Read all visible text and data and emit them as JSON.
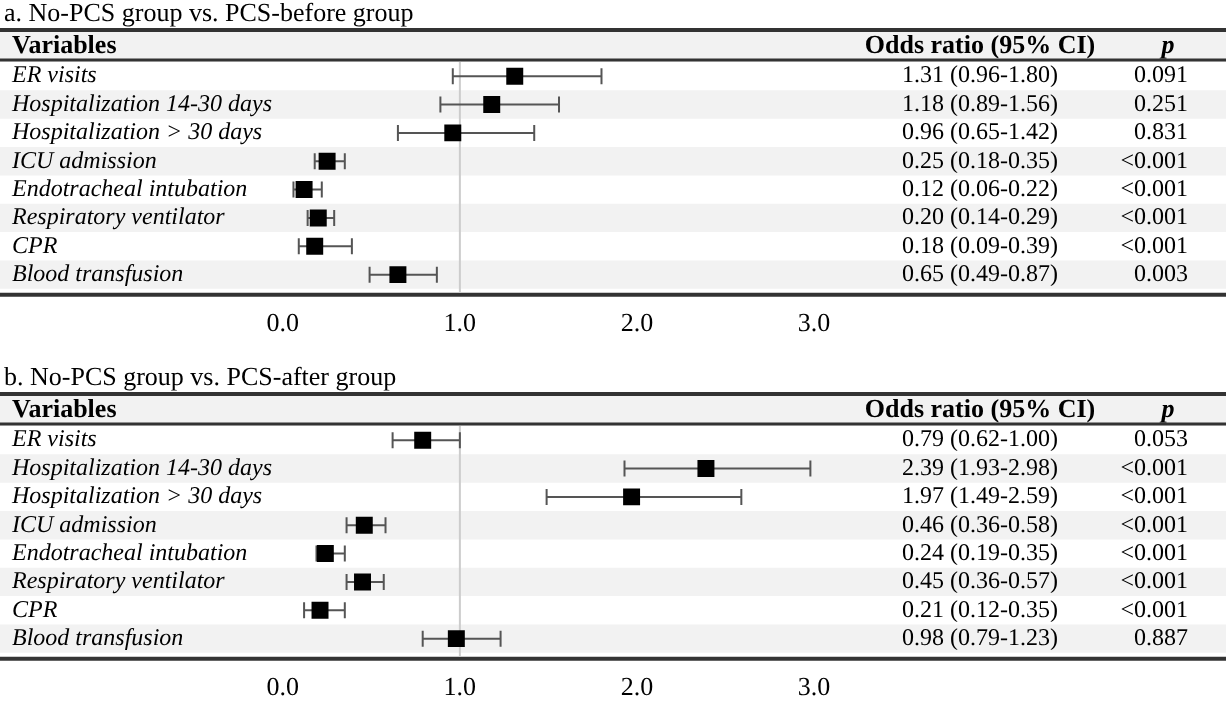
{
  "chart_data": [
    {
      "type": "scatter",
      "title": "a. No-PCS group vs. PCS-before group",
      "ylabel": "Variables",
      "orientation": "horizontal",
      "categories": [
        "ER visits",
        "Hospitalization 14-30 days",
        "Hospitalization > 30 days",
        "ICU admission",
        "Endotracheal intubation",
        "Respiratory ventilator",
        "CPR",
        "Blood transfusion"
      ],
      "values": [
        1.31,
        1.18,
        0.96,
        0.25,
        0.12,
        0.2,
        0.18,
        0.65
      ],
      "errors": [
        [
          0.96,
          1.8
        ],
        [
          0.89,
          1.56
        ],
        [
          0.65,
          1.42
        ],
        [
          0.18,
          0.35
        ],
        [
          0.06,
          0.22
        ],
        [
          0.14,
          0.29
        ],
        [
          0.09,
          0.39
        ],
        [
          0.49,
          0.87
        ]
      ],
      "color": "#000000",
      "marker": "square",
      "xlim": [
        -1.53,
        5.26
      ],
      "xticks": [
        {
          "value": 0,
          "label": "0.0"
        },
        {
          "value": 1,
          "label": "1.0"
        },
        {
          "value": 2,
          "label": "2.0"
        },
        {
          "value": 3,
          "label": "3.0"
        }
      ],
      "ref_lines": [
        {
          "axis": "x",
          "value": 1,
          "color": "#cccccc"
        }
      ],
      "grid": false,
      "legend": false,
      "annotations": [
        "Odds ratio (95% CI)",
        "p",
        "1.31 (0.96-1.80)",
        "0.091",
        "1.18 (0.89-1.56)",
        "0.251",
        "0.96 (0.65-1.42)",
        "0.831",
        "0.25 (0.18-0.35)",
        "<0.001",
        "0.12 (0.06-0.22)",
        "<0.001",
        "0.20 (0.14-0.29)",
        "<0.001",
        "0.18 (0.09-0.39)",
        "<0.001",
        "0.65 (0.49-0.87)",
        "0.003"
      ]
    },
    {
      "type": "scatter",
      "title": "b. No-PCS group vs. PCS-after group",
      "ylabel": "Variables",
      "orientation": "horizontal",
      "categories": [
        "ER visits",
        "Hospitalization 14-30 days",
        "Hospitalization > 30 days",
        "ICU admission",
        "Endotracheal intubation",
        "Respiratory ventilator",
        "CPR",
        "Blood transfusion"
      ],
      "values": [
        0.79,
        2.39,
        1.97,
        0.46,
        0.24,
        0.45,
        0.21,
        0.98
      ],
      "errors": [
        [
          0.62,
          1.0
        ],
        [
          1.93,
          2.98
        ],
        [
          1.49,
          2.59
        ],
        [
          0.36,
          0.58
        ],
        [
          0.19,
          0.35
        ],
        [
          0.36,
          0.57
        ],
        [
          0.12,
          0.35
        ],
        [
          0.79,
          1.23
        ]
      ],
      "color": "#000000",
      "marker": "square",
      "xlim": [
        -1.53,
        5.26
      ],
      "xticks": [
        {
          "value": 0,
          "label": "0.0"
        },
        {
          "value": 1,
          "label": "1.0"
        },
        {
          "value": 2,
          "label": "2.0"
        },
        {
          "value": 3,
          "label": "3.0"
        }
      ],
      "ref_lines": [
        {
          "axis": "x",
          "value": 1,
          "color": "#cccccc"
        }
      ],
      "grid": false,
      "legend": false,
      "annotations": [
        "Odds ratio (95% CI)",
        "p",
        "0.79 (0.62-1.00)",
        "0.053",
        "2.39 (1.93-2.98)",
        "<0.001",
        "1.97 (1.49-2.59)",
        "<0.001",
        "0.46 (0.36-0.58)",
        "<0.001",
        "0.24 (0.19-0.35)",
        "<0.001",
        "0.45 (0.36-0.57)",
        "<0.001",
        "0.21 (0.12-0.35)",
        "<0.001",
        "0.98 (0.79-1.23)",
        "0.887"
      ]
    }
  ]
}
